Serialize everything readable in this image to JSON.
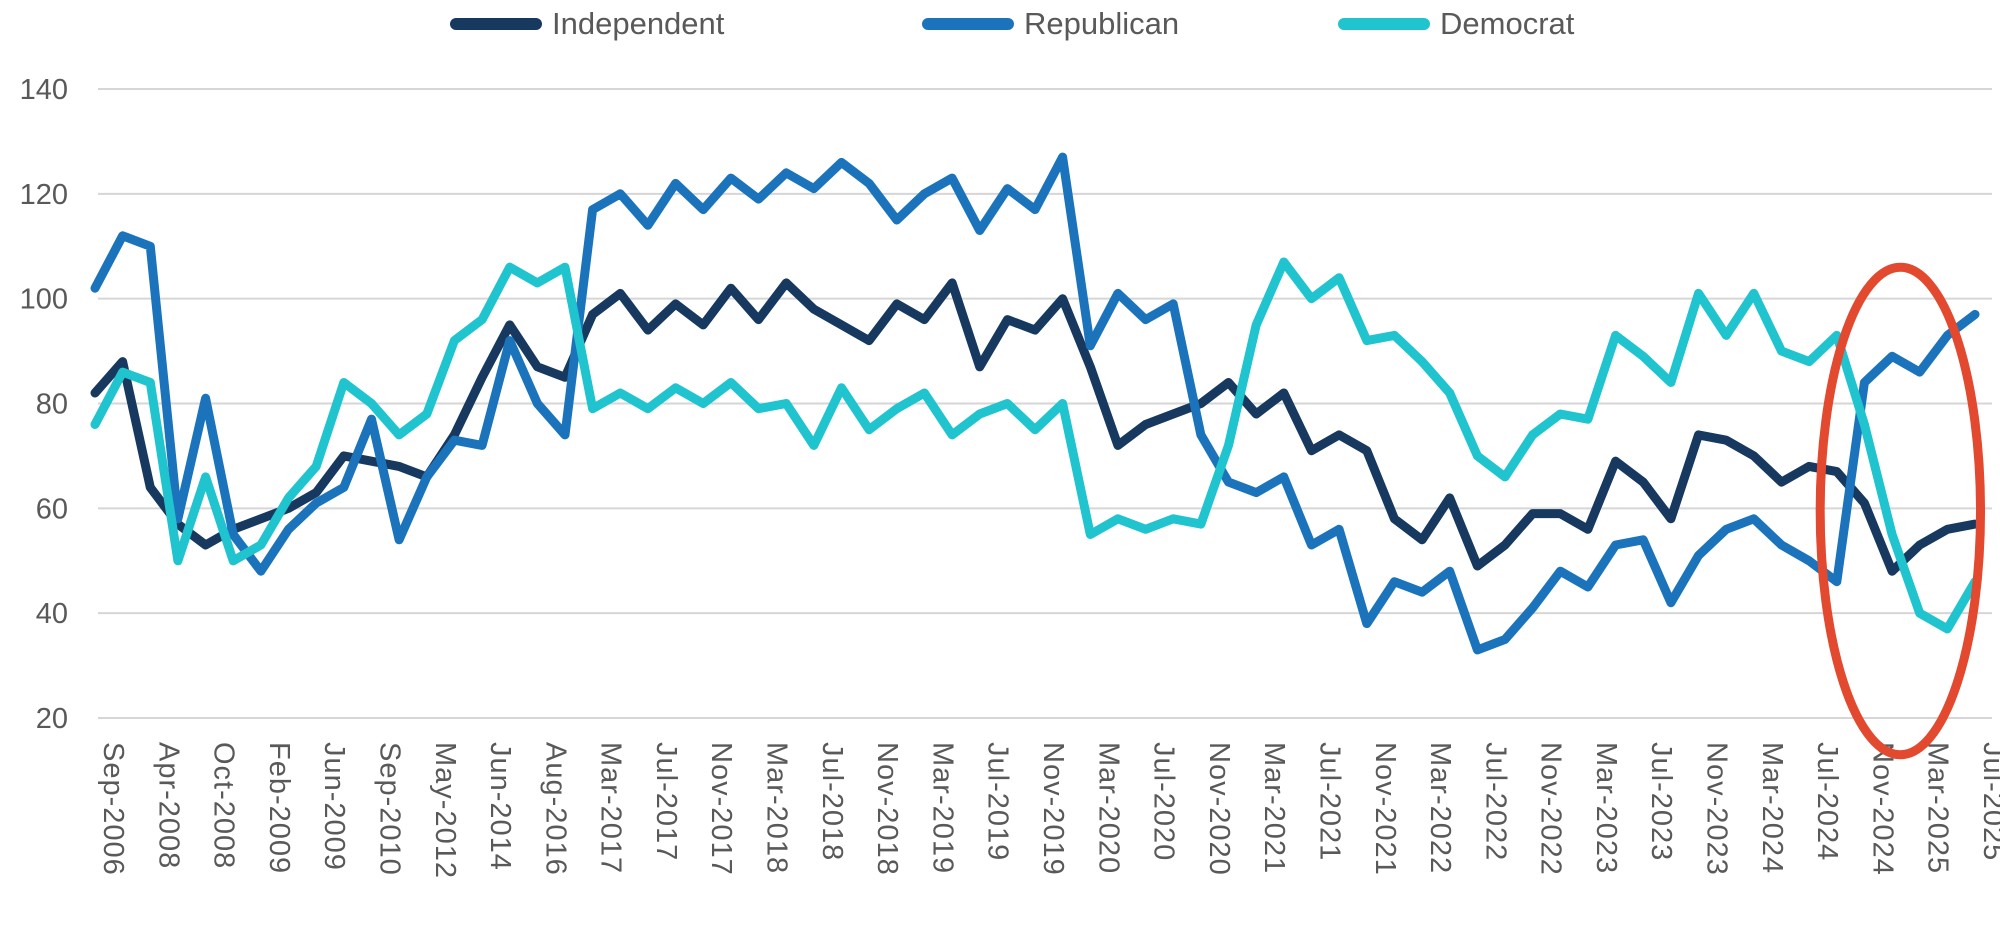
{
  "page": {
    "background": "#FFFFFF",
    "text_color": "#595959"
  },
  "legend": {
    "items": [
      {
        "label": "Independent",
        "color": "#17395F"
      },
      {
        "label": "Republican",
        "color": "#1B74BB"
      },
      {
        "label": "Democrat",
        "color": "#1FC4CE"
      }
    ]
  },
  "chart_data": {
    "type": "line",
    "title": "",
    "xlabel": "",
    "ylabel": "",
    "ylim": [
      20,
      140
    ],
    "yticks": [
      20,
      40,
      60,
      80,
      100,
      120,
      140
    ],
    "grid": "horizontal",
    "gridline_color": "#D6D6D6",
    "axis_label_color": "#595959",
    "legend_position": "top",
    "n_points": 69,
    "x_tick_step": 2,
    "x_tick_rotation_deg": 90,
    "x_tick_labels": [
      "Sep-2006",
      "Apr-2008",
      "Oct-2008",
      "Feb-2009",
      "Jun-2009",
      "Sep-2010",
      "May-2012",
      "Jun-2014",
      "Aug-2016",
      "Mar-2017",
      "Jul-2017",
      "Nov-2017",
      "Mar-2018",
      "Jul-2018",
      "Nov-2018",
      "Mar-2019",
      "Jul-2019",
      "Nov-2019",
      "Mar-2020",
      "Jul-2020",
      "Nov-2020",
      "Mar-2021",
      "Jul-2021",
      "Nov-2021",
      "Mar-2022",
      "Jul-2022",
      "Nov-2022",
      "Mar-2023",
      "Jul-2023",
      "Nov-2023",
      "Mar-2024",
      "Jul-2024",
      "Nov-2024",
      "Mar-2025",
      "Jul-2025"
    ],
    "series": [
      {
        "name": "Independent",
        "color": "#17395F",
        "values": [
          82,
          88,
          64,
          57,
          53,
          56,
          58,
          60,
          63,
          70,
          69,
          68,
          66,
          74,
          85,
          95,
          87,
          85,
          97,
          101,
          94,
          99,
          95,
          102,
          96,
          103,
          98,
          95,
          92,
          99,
          96,
          103,
          87,
          96,
          94,
          100,
          87,
          72,
          76,
          78,
          80,
          84,
          78,
          82,
          71,
          74,
          71,
          58,
          54,
          62,
          49,
          53,
          59,
          59,
          56,
          69,
          65,
          58,
          74,
          73,
          70,
          65,
          68,
          67,
          61,
          48,
          53,
          56,
          57
        ]
      },
      {
        "name": "Republican",
        "color": "#1B74BB",
        "values": [
          102,
          112,
          110,
          58,
          81,
          55,
          48,
          56,
          61,
          64,
          77,
          54,
          66,
          73,
          72,
          92,
          80,
          74,
          117,
          120,
          114,
          122,
          117,
          123,
          119,
          124,
          121,
          126,
          122,
          115,
          120,
          123,
          113,
          121,
          117,
          127,
          91,
          101,
          96,
          99,
          74,
          65,
          63,
          66,
          53,
          56,
          38,
          46,
          44,
          48,
          33,
          35,
          41,
          48,
          45,
          53,
          54,
          42,
          51,
          56,
          58,
          53,
          50,
          46,
          84,
          89,
          86,
          93,
          97
        ]
      },
      {
        "name": "Democrat",
        "color": "#1FC4CE",
        "values": [
          76,
          86,
          84,
          50,
          66,
          50,
          53,
          62,
          68,
          84,
          80,
          74,
          78,
          92,
          96,
          106,
          103,
          106,
          79,
          82,
          79,
          83,
          80,
          84,
          79,
          80,
          72,
          83,
          75,
          79,
          82,
          74,
          78,
          80,
          75,
          80,
          55,
          58,
          56,
          58,
          57,
          72,
          95,
          107,
          100,
          104,
          92,
          93,
          88,
          82,
          70,
          66,
          74,
          78,
          77,
          93,
          89,
          84,
          101,
          93,
          101,
          90,
          88,
          93,
          76,
          55,
          40,
          37,
          46
        ]
      }
    ],
    "annotation": {
      "shape": "ellipse",
      "color": "#E2492F",
      "center_index": 65.3,
      "center_value": 59.5,
      "radius_index": 2.9,
      "radius_value": 46.5
    }
  }
}
